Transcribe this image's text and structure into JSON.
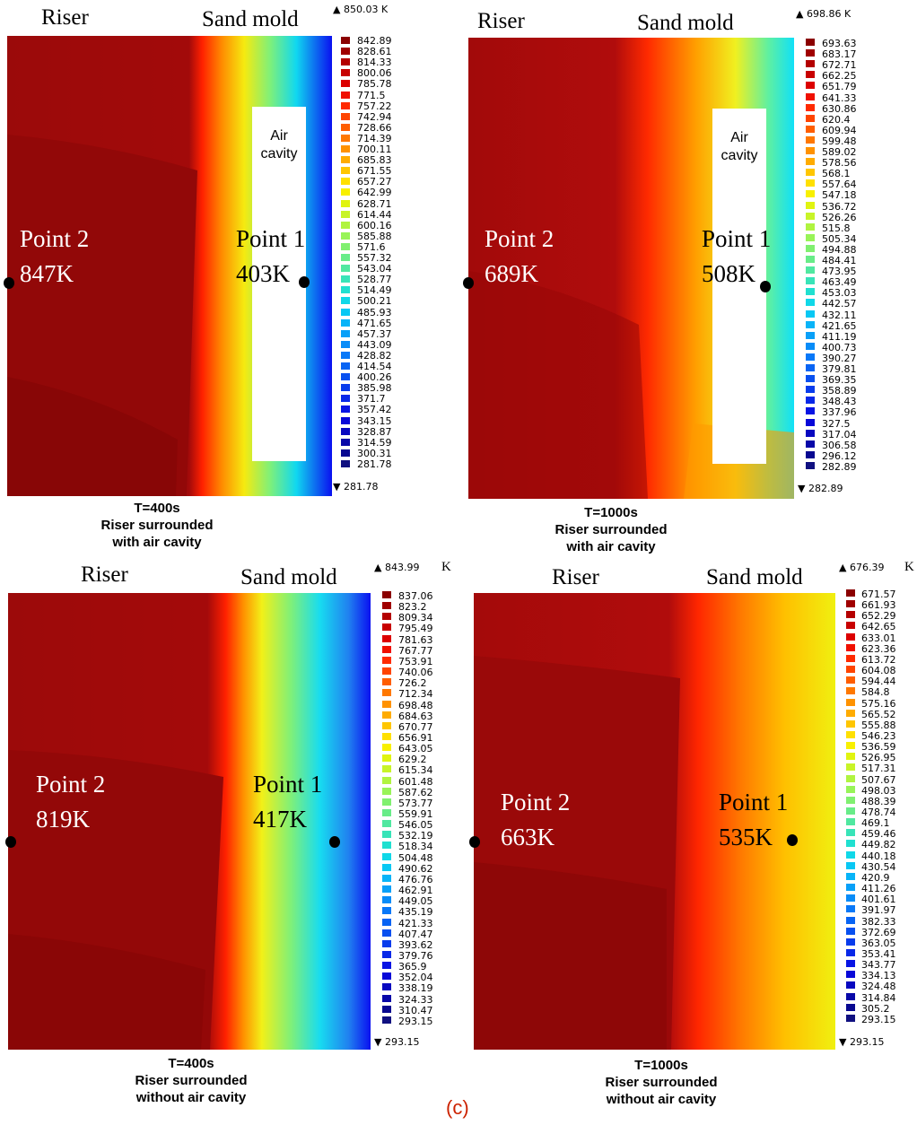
{
  "figure_label": "(c)",
  "panels": [
    {
      "riser_label": "Riser",
      "mold_label": "Sand mold",
      "max_value": "850.03 K",
      "min_value": "281.78",
      "unit": "",
      "scale_values": [
        "842.89",
        "828.61",
        "814.33",
        "800.06",
        "785.78",
        "771.5",
        "757.22",
        "742.94",
        "728.66",
        "714.39",
        "700.11",
        "685.83",
        "671.55",
        "657.27",
        "642.99",
        "628.71",
        "614.44",
        "600.16",
        "585.88",
        "571.6",
        "557.32",
        "543.04",
        "528.77",
        "514.49",
        "500.21",
        "485.93",
        "471.65",
        "457.37",
        "443.09",
        "428.82",
        "414.54",
        "400.26",
        "385.98",
        "371.7",
        "357.42",
        "343.15",
        "328.87",
        "314.59",
        "300.31",
        "281.78"
      ],
      "point2": {
        "name": "Point 2",
        "temp": "847K"
      },
      "point1": {
        "name": "Point 1",
        "temp": "403K"
      },
      "cavity_label": "Air\ncavity",
      "caption": "T=400s\nRiser surrounded\nwith air cavity"
    },
    {
      "riser_label": "Riser",
      "mold_label": "Sand mold",
      "max_value": "698.86 K",
      "min_value": "282.89",
      "unit": "",
      "scale_values": [
        "693.63",
        "683.17",
        "672.71",
        "662.25",
        "651.79",
        "641.33",
        "630.86",
        "620.4",
        "609.94",
        "599.48",
        "589.02",
        "578.56",
        "568.1",
        "557.64",
        "547.18",
        "536.72",
        "526.26",
        "515.8",
        "505.34",
        "494.88",
        "484.41",
        "473.95",
        "463.49",
        "453.03",
        "442.57",
        "432.11",
        "421.65",
        "411.19",
        "400.73",
        "390.27",
        "379.81",
        "369.35",
        "358.89",
        "348.43",
        "337.96",
        "327.5",
        "317.04",
        "306.58",
        "296.12",
        "282.89"
      ],
      "point2": {
        "name": "Point 2",
        "temp": "689K"
      },
      "point1": {
        "name": "Point 1",
        "temp": "508K"
      },
      "cavity_label": "Air\ncavity",
      "caption": "T=1000s\nRiser surrounded\nwith air cavity"
    },
    {
      "riser_label": "Riser",
      "mold_label": "Sand mold",
      "max_value": "843.99",
      "min_value": "293.15",
      "unit": "K",
      "scale_values": [
        "837.06",
        "823.2",
        "809.34",
        "795.49",
        "781.63",
        "767.77",
        "753.91",
        "740.06",
        "726.2",
        "712.34",
        "698.48",
        "684.63",
        "670.77",
        "656.91",
        "643.05",
        "629.2",
        "615.34",
        "601.48",
        "587.62",
        "573.77",
        "559.91",
        "546.05",
        "532.19",
        "518.34",
        "504.48",
        "490.62",
        "476.76",
        "462.91",
        "449.05",
        "435.19",
        "421.33",
        "407.47",
        "393.62",
        "379.76",
        "365.9",
        "352.04",
        "338.19",
        "324.33",
        "310.47",
        "293.15"
      ],
      "point2": {
        "name": "Point 2",
        "temp": "819K"
      },
      "point1": {
        "name": "Point 1",
        "temp": "417K"
      },
      "cavity_label": "",
      "caption": "T=400s\nRiser surrounded\nwithout air cavity"
    },
    {
      "riser_label": "Riser",
      "mold_label": "Sand mold",
      "max_value": "676.39",
      "min_value": "293.15",
      "unit": "K",
      "scale_values": [
        "671.57",
        "661.93",
        "652.29",
        "642.65",
        "633.01",
        "623.36",
        "613.72",
        "604.08",
        "594.44",
        "584.8",
        "575.16",
        "565.52",
        "555.88",
        "546.23",
        "536.59",
        "526.95",
        "517.31",
        "507.67",
        "498.03",
        "488.39",
        "478.74",
        "469.1",
        "459.46",
        "449.82",
        "440.18",
        "430.54",
        "420.9",
        "411.26",
        "401.61",
        "391.97",
        "382.33",
        "372.69",
        "363.05",
        "353.41",
        "343.77",
        "334.13",
        "324.48",
        "314.84",
        "305.2",
        "293.15"
      ],
      "point2": {
        "name": "Point 2",
        "temp": "663K"
      },
      "point1": {
        "name": "Point 1",
        "temp": "535K"
      },
      "cavity_label": "",
      "caption": "T=1000s\nRiser surrounded\nwithout air cavity"
    }
  ]
}
